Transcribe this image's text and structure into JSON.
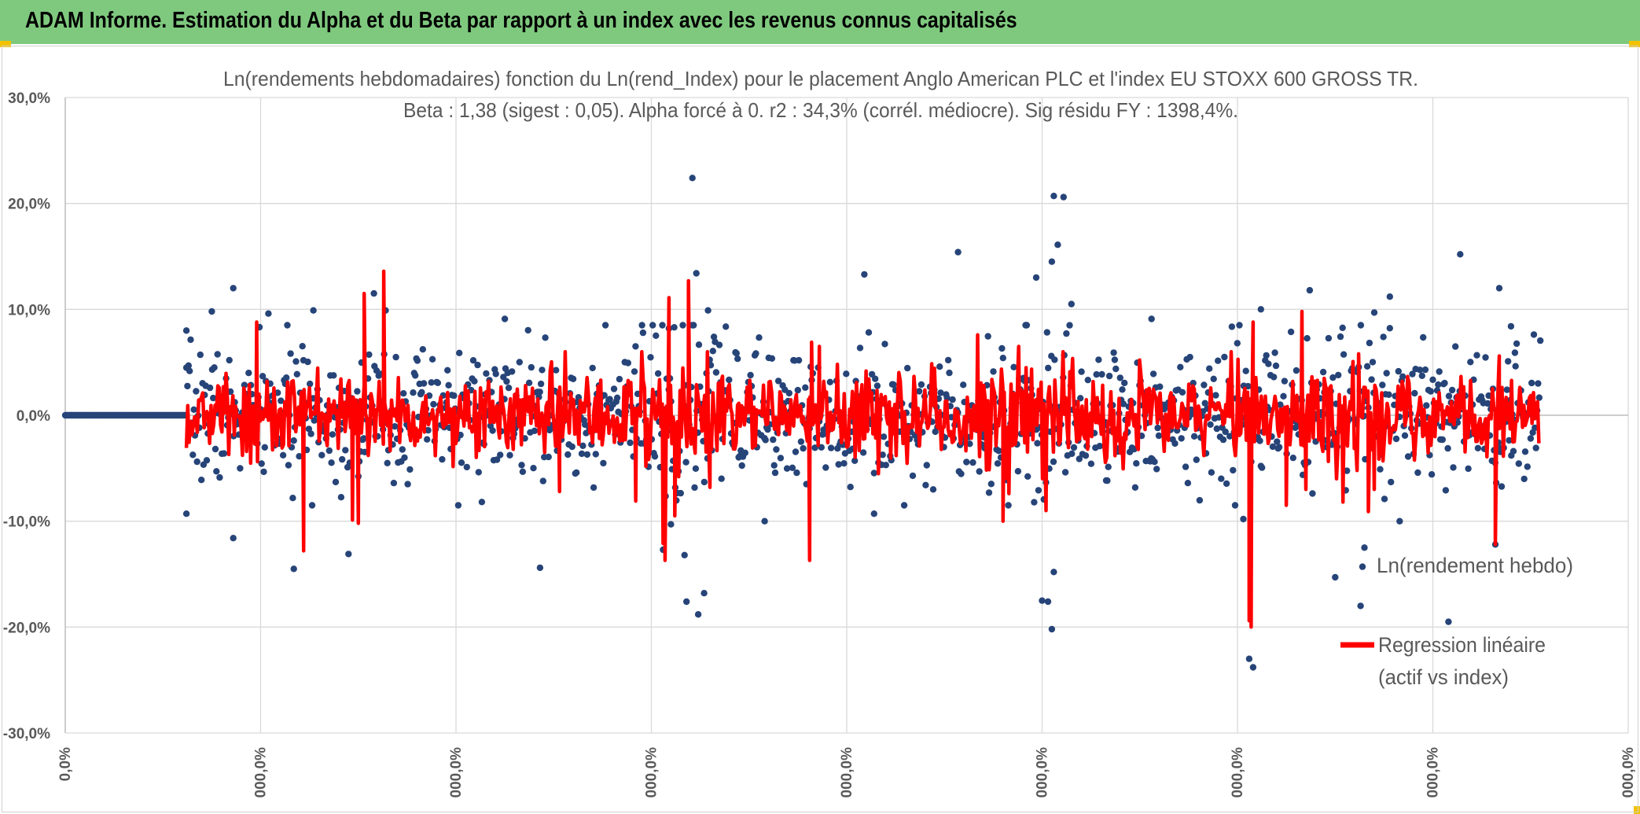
{
  "header": {
    "title": "ADAM Informe. Estimation du Alpha et du Beta par rapport à un index avec les revenus connus capitalisés"
  },
  "chart_data": {
    "type": "scatter",
    "title": "Ln(rendements hebdomadaires) fonction du Ln(rend_Index) pour le placement Anglo American PLC et l'index EU STOXX 600 GROSS TR.",
    "subtitle": "Beta : 1,38 (sigest : 0,05). Alpha forcé à 0. r2 : 34,3% (corrél. médiocre). Sig résidu FY : 1398,4%.",
    "y_tick_labels": [
      "30,0%",
      "20,0%",
      "10,0%",
      "0,0%",
      "-10,0%",
      "-20,0%",
      "-30,0%"
    ],
    "y_ticks": [
      30,
      20,
      10,
      0,
      -10,
      -20,
      -30
    ],
    "ylim": [
      -30,
      30
    ],
    "x_tick_labels": [
      "0,0%",
      "000,0%",
      "000,0%",
      "000,0%",
      "000,0%",
      "000,0%",
      "000,0%",
      "000,0%",
      "000,0%"
    ],
    "xlim": [
      0,
      800
    ],
    "grid": true,
    "colors": {
      "scatter": "#264478",
      "line": "#ff0000",
      "grid": "#d9d9d9",
      "axis": "#bfbfbf"
    },
    "series": [
      {
        "name": "Ln(rendement hebdo)",
        "kind": "scatter",
        "zero_block": {
          "from": 0,
          "to": 62,
          "value": 0
        },
        "generated": {
          "from": 62,
          "to": 755,
          "step": 0.55,
          "seed": 7,
          "base_sigma": 3.1
        },
        "highlight_points": [
          [
            62,
            8.0
          ],
          [
            62,
            -9.3
          ],
          [
            75,
            9.8
          ],
          [
            86,
            12.0
          ],
          [
            86,
            -11.6
          ],
          [
            104,
            9.6
          ],
          [
            117,
            -14.5
          ],
          [
            127,
            9.9
          ],
          [
            145,
            -13.1
          ],
          [
            158,
            11.5
          ],
          [
            164,
            9.9
          ],
          [
            225,
            9.1
          ],
          [
            243,
            -14.4
          ],
          [
            306,
            -12.7
          ],
          [
            309,
            8.2
          ],
          [
            310,
            -10.3
          ],
          [
            317,
            -13.2
          ],
          [
            318,
            -17.6
          ],
          [
            321,
            22.4
          ],
          [
            323,
            13.4
          ],
          [
            324,
            -18.8
          ],
          [
            327,
            -16.8
          ],
          [
            329,
            9.9
          ],
          [
            358,
            -10.0
          ],
          [
            409,
            13.3
          ],
          [
            414,
            -9.3
          ],
          [
            457,
            15.4
          ],
          [
            497,
            13.0
          ],
          [
            500,
            -17.5
          ],
          [
            503,
            -17.6
          ],
          [
            505,
            14.5
          ],
          [
            505,
            -20.2
          ],
          [
            506,
            -14.8
          ],
          [
            506,
            20.7
          ],
          [
            508,
            16.1
          ],
          [
            511,
            20.6
          ],
          [
            515,
            10.5
          ],
          [
            556,
            9.1
          ],
          [
            603,
            -9.8
          ],
          [
            606,
            -23.0
          ],
          [
            608,
            -23.8
          ],
          [
            612,
            10.0
          ],
          [
            637,
            11.8
          ],
          [
            650,
            -15.3
          ],
          [
            663,
            -18.0
          ],
          [
            664,
            -14.3
          ],
          [
            665,
            -12.5
          ],
          [
            670,
            9.7
          ],
          [
            678,
            11.2
          ],
          [
            683,
            -10.0
          ],
          [
            708,
            -19.5
          ],
          [
            714,
            15.2
          ],
          [
            732,
            -12.2
          ],
          [
            734,
            12.0
          ],
          [
            740,
            8.4
          ],
          [
            742,
            5.9
          ]
        ]
      },
      {
        "name": "Regression linéaire (actif vs index)",
        "kind": "line",
        "from": 62,
        "to": 755,
        "step": 0.7,
        "seed": 13,
        "beta": 1.38,
        "spikes": [
          [
            95,
            -3.3
          ],
          [
            98,
            8.8
          ],
          [
            122,
            -12.8
          ],
          [
            147,
            -9.9
          ],
          [
            150,
            -10.2
          ],
          [
            153,
            11.5
          ],
          [
            163,
            13.6
          ],
          [
            253,
            -7.2
          ],
          [
            292,
            -8.1
          ],
          [
            306,
            -12.1
          ],
          [
            307,
            -13.7
          ],
          [
            309,
            11.1
          ],
          [
            312,
            -9.5
          ],
          [
            319,
            12.7
          ],
          [
            330,
            -6.8
          ],
          [
            381,
            -13.7
          ],
          [
            382,
            6.9
          ],
          [
            386,
            6.5
          ],
          [
            467,
            7.6
          ],
          [
            480,
            -10.0
          ],
          [
            483,
            -7.4
          ],
          [
            488,
            6.5
          ],
          [
            502,
            -9.0
          ],
          [
            606,
            -19.4
          ],
          [
            607,
            -20.0
          ],
          [
            608,
            8.8
          ],
          [
            625,
            -8.5
          ],
          [
            633,
            9.8
          ],
          [
            635,
            -7.0
          ],
          [
            654,
            -8.2
          ],
          [
            662,
            5.8
          ],
          [
            667,
            -9.1
          ],
          [
            670,
            -7.0
          ],
          [
            732,
            -12.2
          ],
          [
            734,
            5.6
          ]
        ]
      }
    ],
    "legend": {
      "position": "bottom-right",
      "items": [
        "Ln(rendement hebdo)",
        "Regression linéaire",
        "(actif vs index)"
      ]
    }
  }
}
